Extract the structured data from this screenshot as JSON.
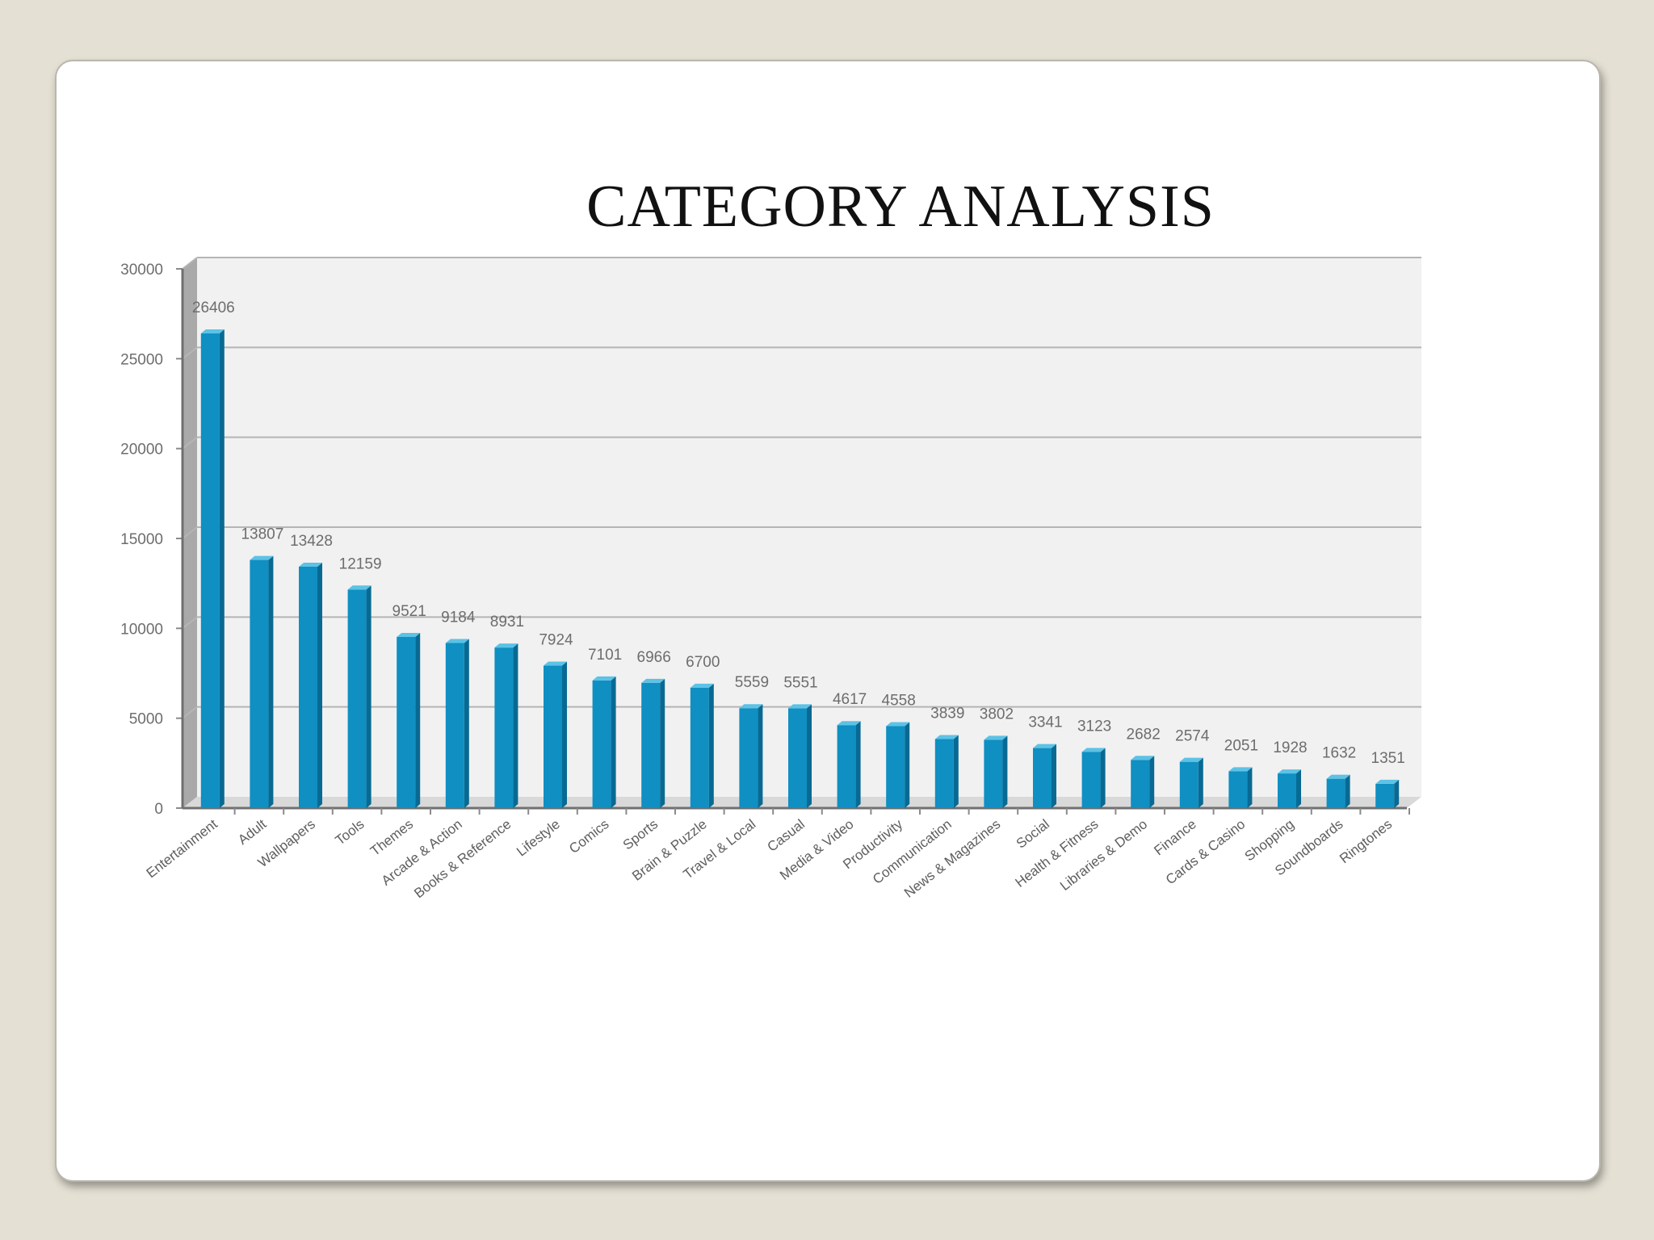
{
  "slide": {
    "title": "CATEGORY ANALYSIS"
  },
  "colors": {
    "background": "#e4e0d3",
    "slide": "#ffffff",
    "bar_front": "#0f8fc2",
    "bar_side": "#086a93",
    "bar_top": "#5cc2e6",
    "plot_back": "#f1f1f1",
    "gridline": "#b5b5b5"
  },
  "chart_data": {
    "type": "bar",
    "style": "3d-column",
    "categories": [
      "Entertainment",
      "Adult",
      "Wallpapers",
      "Tools",
      "Themes",
      "Arcade & Action",
      "Books & Reference",
      "Lifestyle",
      "Comics",
      "Sports",
      "Brain & Puzzle",
      "Travel & Local",
      "Casual",
      "Media & Video",
      "Productivity",
      "Communication",
      "News & Magazines",
      "Social",
      "Health & Fitness",
      "Libraries & Demo",
      "Finance",
      "Cards & Casino",
      "Shopping",
      "Soundboards",
      "Ringtones"
    ],
    "values": [
      26406,
      13807,
      13428,
      12159,
      9521,
      9184,
      8931,
      7924,
      7101,
      6966,
      6700,
      5559,
      5551,
      4617,
      4558,
      3839,
      3802,
      3341,
      3123,
      2682,
      2574,
      2051,
      1928,
      1632,
      1351
    ],
    "value_labels": [
      "26406",
      "13807",
      "13428",
      "12159",
      "9521",
      "9184",
      "8931",
      "7924",
      "7101",
      "6966",
      "6700",
      "5559",
      "5551",
      "4617",
      "4558",
      "3839",
      "3802",
      "3341",
      "3123",
      "2682",
      "2574",
      "2051",
      "1928",
      "1632",
      "1351"
    ],
    "y_ticks": [
      "0",
      "5000",
      "10000",
      "15000",
      "20000",
      "25000",
      "30000"
    ],
    "ylim": [
      0,
      30000
    ],
    "grid": true,
    "legend": "none",
    "title": "",
    "xlabel": "",
    "ylabel": ""
  }
}
